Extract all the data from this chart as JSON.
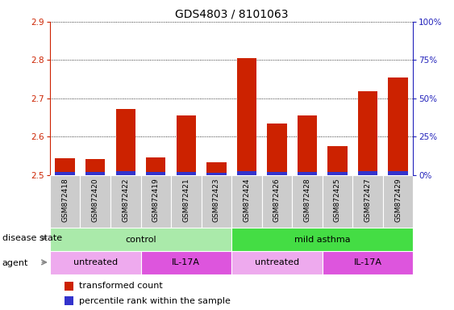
{
  "title": "GDS4803 / 8101063",
  "samples": [
    "GSM872418",
    "GSM872420",
    "GSM872422",
    "GSM872419",
    "GSM872421",
    "GSM872423",
    "GSM872424",
    "GSM872426",
    "GSM872428",
    "GSM872425",
    "GSM872427",
    "GSM872429"
  ],
  "red_values": [
    2.545,
    2.543,
    2.672,
    2.547,
    2.655,
    2.533,
    2.805,
    2.635,
    2.655,
    2.575,
    2.718,
    2.755
  ],
  "blue_heights": [
    0.008,
    0.008,
    0.01,
    0.008,
    0.009,
    0.007,
    0.01,
    0.009,
    0.009,
    0.008,
    0.01,
    0.01
  ],
  "ylim_left": [
    2.5,
    2.9
  ],
  "yticks_left": [
    2.5,
    2.6,
    2.7,
    2.8,
    2.9
  ],
  "ylim_right": [
    0,
    100
  ],
  "yticks_right": [
    0,
    25,
    50,
    75,
    100
  ],
  "ytick_labels_right": [
    "0%",
    "25%",
    "50%",
    "75%",
    "100%"
  ],
  "disease_state_groups": [
    {
      "label": "control",
      "start": 0,
      "end": 6,
      "color": "#AAEAAA"
    },
    {
      "label": "mild asthma",
      "start": 6,
      "end": 12,
      "color": "#44DD44"
    }
  ],
  "agent_groups": [
    {
      "label": "untreated",
      "start": 0,
      "end": 3,
      "color": "#EEAAEE"
    },
    {
      "label": "IL-17A",
      "start": 3,
      "end": 6,
      "color": "#DD55DD"
    },
    {
      "label": "untreated",
      "start": 6,
      "end": 9,
      "color": "#EEAAEE"
    },
    {
      "label": "IL-17A",
      "start": 9,
      "end": 12,
      "color": "#DD55DD"
    }
  ],
  "legend_red": "transformed count",
  "legend_blue": "percentile rank within the sample",
  "bar_width": 0.65,
  "red_color": "#CC2200",
  "blue_color": "#3333CC",
  "left_tick_color": "#CC2200",
  "right_tick_color": "#2222BB",
  "title_fontsize": 10,
  "tick_fontsize": 7.5,
  "label_fontsize": 8,
  "sample_fontsize": 6.5,
  "row_label_fontsize": 8,
  "legend_fontsize": 8
}
